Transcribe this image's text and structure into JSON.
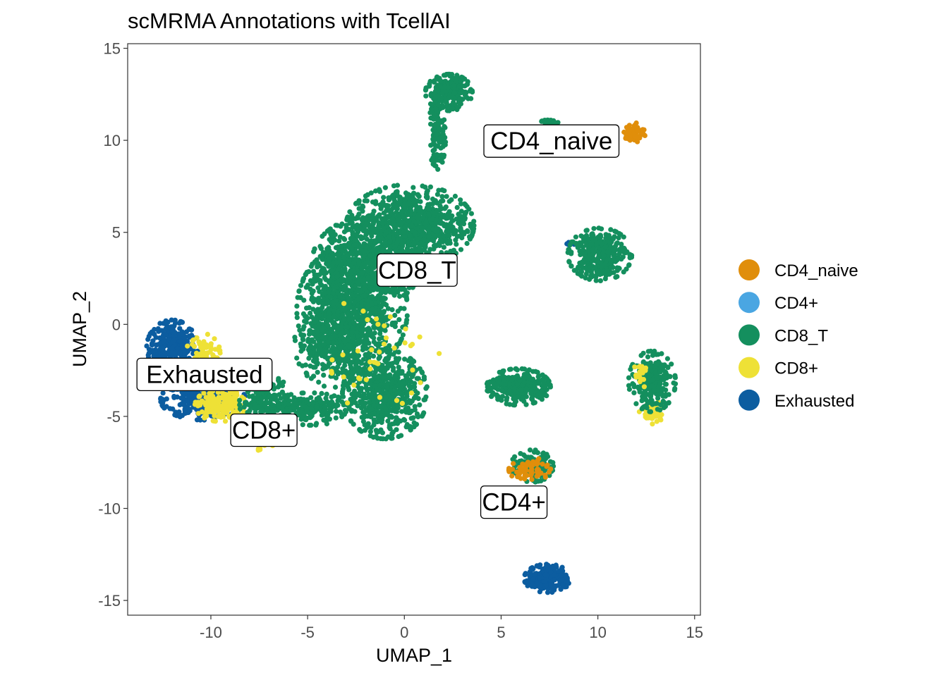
{
  "chart_data": {
    "type": "scatter",
    "title": "scMRMA Annotations with TcellAI",
    "xlabel": "UMAP_1",
    "ylabel": "UMAP_2",
    "xlim": [
      -14.3,
      15.3
    ],
    "ylim": [
      -15.8,
      15.25
    ],
    "xticks": [
      -10,
      -5,
      0,
      5,
      10,
      15
    ],
    "yticks": [
      -15,
      -10,
      -5,
      0,
      5,
      10,
      15
    ],
    "grid": false,
    "legend_position": "right",
    "legend": [
      {
        "name": "CD4_naive",
        "color": "#E08E0B"
      },
      {
        "name": "CD4+",
        "color": "#4AA6E2"
      },
      {
        "name": "CD8_T",
        "color": "#148F5E"
      },
      {
        "name": "CD8+",
        "color": "#EEE136"
      },
      {
        "name": "Exhausted",
        "color": "#0C5DA0"
      }
    ],
    "clusters": [
      {
        "label": "Exhausted",
        "cx": -12.0,
        "cy": -1.3,
        "sx": 0.6,
        "sy": 0.7,
        "n": 350
      },
      {
        "label": "Exhausted",
        "cx": -10.4,
        "cy": -4.1,
        "sx": 1.0,
        "sy": 0.5,
        "n": 350
      },
      {
        "label": "CD8+",
        "cx": -10.4,
        "cy": -1.6,
        "sx": 0.4,
        "sy": 0.5,
        "n": 80
      },
      {
        "label": "CD8+",
        "cx": -9.5,
        "cy": -4.4,
        "sx": 0.6,
        "sy": 0.4,
        "n": 180
      },
      {
        "label": "CD8+",
        "cx": -7.6,
        "cy": -6.4,
        "sx": 0.4,
        "sy": 0.2,
        "n": 40
      },
      {
        "label": "CD8_T",
        "cx": -7.2,
        "cy": -4.2,
        "sx": 0.6,
        "sy": 0.8,
        "n": 220
      },
      {
        "label": "CD8_T",
        "cx": -4.9,
        "cy": -4.6,
        "sx": 1.0,
        "sy": 0.4,
        "n": 200
      },
      {
        "label": "CD8_T",
        "cx": 0.3,
        "cy": 5.4,
        "sx": 1.5,
        "sy": 1.0,
        "n": 800
      },
      {
        "label": "CD8_T",
        "cx": -1.9,
        "cy": 3.4,
        "sx": 1.3,
        "sy": 1.1,
        "n": 600
      },
      {
        "label": "CD8_T",
        "cx": -2.7,
        "cy": 0.8,
        "sx": 1.3,
        "sy": 1.6,
        "n": 900
      },
      {
        "label": "CD8_T",
        "cx": -3.7,
        "cy": -1.0,
        "sx": 0.9,
        "sy": 1.1,
        "n": 300
      },
      {
        "label": "CD8_T",
        "cx": -1.0,
        "cy": -3.8,
        "sx": 1.0,
        "sy": 1.1,
        "n": 600
      },
      {
        "label": "CD8+",
        "cx": -1.5,
        "cy": -1.5,
        "sx": 1.5,
        "sy": 1.4,
        "n": 40
      },
      {
        "label": "CD8_T",
        "cx": 2.3,
        "cy": 12.6,
        "sx": 0.55,
        "sy": 0.45,
        "n": 250
      },
      {
        "label": "CD8_T",
        "cx": 1.7,
        "cy": 10.4,
        "sx": 0.2,
        "sy": 0.9,
        "n": 120
      },
      {
        "label": "CD8_T",
        "cx": 7.5,
        "cy": 11.0,
        "sx": 0.2,
        "sy": 0.1,
        "n": 20
      },
      {
        "label": "CD4_naive",
        "cx": 11.9,
        "cy": 10.4,
        "sx": 0.25,
        "sy": 0.25,
        "n": 70
      },
      {
        "label": "Exhausted",
        "cx": 8.5,
        "cy": 4.4,
        "sx": 0.2,
        "sy": 0.05,
        "n": 8
      },
      {
        "label": "CD8_T",
        "cx": 10.1,
        "cy": 3.8,
        "sx": 0.75,
        "sy": 0.65,
        "n": 350
      },
      {
        "label": "CD8_T",
        "cx": 5.9,
        "cy": -3.4,
        "sx": 0.75,
        "sy": 0.45,
        "n": 300
      },
      {
        "label": "CD8+",
        "cx": 12.8,
        "cy": -4.8,
        "sx": 0.3,
        "sy": 0.3,
        "n": 50
      },
      {
        "label": "CD8_T",
        "cx": 12.8,
        "cy": -3.1,
        "sx": 0.55,
        "sy": 0.75,
        "n": 250
      },
      {
        "label": "CD8+",
        "cx": 12.2,
        "cy": -2.8,
        "sx": 0.2,
        "sy": 0.3,
        "n": 20
      },
      {
        "label": "CD8_T",
        "cx": 6.6,
        "cy": -7.7,
        "sx": 0.5,
        "sy": 0.4,
        "n": 110
      },
      {
        "label": "CD4_naive",
        "cx": 6.5,
        "cy": -7.9,
        "sx": 0.5,
        "sy": 0.3,
        "n": 60
      },
      {
        "label": "Exhausted",
        "cx": 7.4,
        "cy": -13.8,
        "sx": 0.55,
        "sy": 0.35,
        "n": 220
      }
    ],
    "annotations": [
      {
        "text": "CD4_naive",
        "x": 7.6,
        "y": 9.96
      },
      {
        "text": "CD8_T",
        "x": 0.66,
        "y": 2.95
      },
      {
        "text": "Exhausted",
        "x": -10.33,
        "y": -2.72
      },
      {
        "text": "CD8+",
        "x": -7.26,
        "y": -5.75
      },
      {
        "text": "CD4+",
        "x": 5.66,
        "y": -9.66
      }
    ]
  }
}
